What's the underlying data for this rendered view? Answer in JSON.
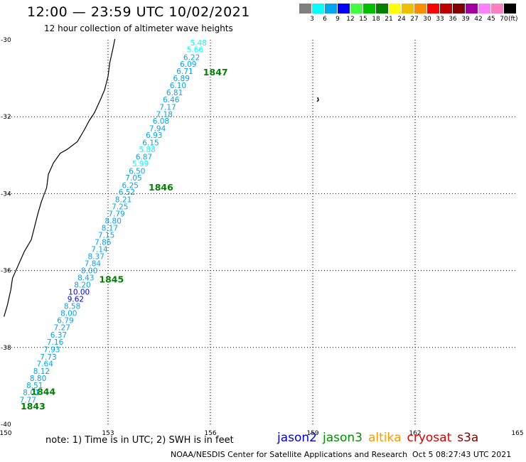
{
  "header": {
    "title": "12:00 — 23:59 UTC 10/02/2021",
    "subtitle": "12 hour collection of altimeter wave heights"
  },
  "color_scale": {
    "colors": [
      "#808080",
      "#00ffff",
      "#00a5f0",
      "#0000ff",
      "#40ff40",
      "#00c000",
      "#008000",
      "#ffff00",
      "#f0c000",
      "#ff8c00",
      "#ff0000",
      "#c00000",
      "#800000",
      "#a000a0",
      "#ff80ff",
      "#ff80c0",
      "#000000"
    ],
    "labels": [
      "3",
      "6",
      "9",
      "12",
      "15",
      "18",
      "21",
      "24",
      "27",
      "30",
      "33",
      "36",
      "39",
      "42",
      "45",
      "70"
    ],
    "unit": "(ft)"
  },
  "map": {
    "lon_labels": [
      "150",
      "153",
      "156",
      "159",
      "162",
      "165"
    ],
    "lat_labels": [
      "-30",
      "-32",
      "-34",
      "-36",
      "-38",
      "-40"
    ],
    "lon_range": [
      150,
      165
    ],
    "lat_range": [
      -30,
      -40
    ],
    "grid": "dotted"
  },
  "track": {
    "satellite": "jason3",
    "points": [
      {
        "lon": 155.65,
        "lat": -30.07,
        "swh": "5.48",
        "band": "#00ffff"
      },
      {
        "lon": 155.55,
        "lat": -30.25,
        "swh": "5.66",
        "band": "#00ffff"
      },
      {
        "lon": 155.45,
        "lat": -30.45,
        "swh": "6.22",
        "band": "#00a5f0"
      },
      {
        "lon": 155.35,
        "lat": -30.63,
        "swh": "6.09",
        "band": "#00a5f0"
      },
      {
        "lon": 155.25,
        "lat": -30.81,
        "swh": "6.71",
        "band": "#00a5f0"
      },
      {
        "lon": 155.15,
        "lat": -31.0,
        "swh": "6.89",
        "band": "#00a5f0"
      },
      {
        "lon": 155.05,
        "lat": -31.18,
        "swh": "6.10",
        "band": "#00a5f0"
      },
      {
        "lon": 154.95,
        "lat": -31.37,
        "swh": "6.81",
        "band": "#00a5f0"
      },
      {
        "lon": 154.85,
        "lat": -31.55,
        "swh": "6.46",
        "band": "#00a5f0"
      },
      {
        "lon": 154.75,
        "lat": -31.75,
        "swh": "7.17",
        "band": "#00a5f0"
      },
      {
        "lon": 154.65,
        "lat": -31.93,
        "swh": "7.18",
        "band": "#00a5f0"
      },
      {
        "lon": 154.55,
        "lat": -32.11,
        "swh": "6.08",
        "band": "#00a5f0"
      },
      {
        "lon": 154.45,
        "lat": -32.3,
        "swh": "7.94",
        "band": "#00a5f0"
      },
      {
        "lon": 154.35,
        "lat": -32.48,
        "swh": "6.93",
        "band": "#00a5f0"
      },
      {
        "lon": 154.25,
        "lat": -32.67,
        "swh": "6.15",
        "band": "#00a5f0"
      },
      {
        "lon": 154.15,
        "lat": -32.85,
        "swh": "5.88",
        "band": "#00ffff"
      },
      {
        "lon": 154.05,
        "lat": -33.04,
        "swh": "6.87",
        "band": "#00a5f0"
      },
      {
        "lon": 153.95,
        "lat": -33.22,
        "swh": "5.99",
        "band": "#00ffff"
      },
      {
        "lon": 153.85,
        "lat": -33.41,
        "swh": "6.50",
        "band": "#00a5f0"
      },
      {
        "lon": 153.75,
        "lat": -33.59,
        "swh": "7.05",
        "band": "#00a5f0"
      },
      {
        "lon": 153.65,
        "lat": -33.78,
        "swh": "6.25",
        "band": "#00a5f0"
      },
      {
        "lon": 153.55,
        "lat": -33.96,
        "swh": "6.52",
        "band": "#00a5f0"
      },
      {
        "lon": 153.45,
        "lat": -34.15,
        "swh": "8.21",
        "band": "#00a5f0"
      },
      {
        "lon": 153.35,
        "lat": -34.33,
        "swh": "7.25",
        "band": "#00a5f0"
      },
      {
        "lon": 153.25,
        "lat": -34.52,
        "swh": "7.79",
        "band": "#00a5f0"
      },
      {
        "lon": 153.15,
        "lat": -34.7,
        "swh": "8.80",
        "band": "#00a5f0"
      },
      {
        "lon": 153.05,
        "lat": -34.89,
        "swh": "8.17",
        "band": "#00a5f0"
      },
      {
        "lon": 152.95,
        "lat": -35.07,
        "swh": "7.15",
        "band": "#00a5f0"
      },
      {
        "lon": 152.85,
        "lat": -35.26,
        "swh": "7.86",
        "band": "#00a5f0"
      },
      {
        "lon": 152.75,
        "lat": -35.44,
        "swh": "7.14",
        "band": "#00a5f0"
      },
      {
        "lon": 152.65,
        "lat": -35.63,
        "swh": "8.37",
        "band": "#00a5f0"
      },
      {
        "lon": 152.55,
        "lat": -35.81,
        "swh": "7.84",
        "band": "#00a5f0"
      },
      {
        "lon": 152.45,
        "lat": -36.0,
        "swh": "8.00",
        "band": "#00a5f0"
      },
      {
        "lon": 152.35,
        "lat": -36.18,
        "swh": "8.43",
        "band": "#00a5f0"
      },
      {
        "lon": 152.25,
        "lat": -36.37,
        "swh": "8.20",
        "band": "#00a5f0"
      },
      {
        "lon": 152.15,
        "lat": -36.55,
        "swh": "10.00",
        "band": "#0000ff"
      },
      {
        "lon": 152.05,
        "lat": -36.74,
        "swh": "9.62",
        "band": "#0000ff"
      },
      {
        "lon": 151.95,
        "lat": -36.92,
        "swh": "8.58",
        "band": "#00a5f0"
      },
      {
        "lon": 151.85,
        "lat": -37.11,
        "swh": "8.00",
        "band": "#00a5f0"
      },
      {
        "lon": 151.75,
        "lat": -37.29,
        "swh": "6.79",
        "band": "#00a5f0"
      },
      {
        "lon": 151.65,
        "lat": -37.48,
        "swh": "7.27",
        "band": "#00a5f0"
      },
      {
        "lon": 151.55,
        "lat": -37.67,
        "swh": "6.37",
        "band": "#00a5f0"
      },
      {
        "lon": 151.45,
        "lat": -37.86,
        "swh": "7.16",
        "band": "#00a5f0"
      },
      {
        "lon": 151.35,
        "lat": -38.05,
        "swh": "7.93",
        "band": "#00a5f0"
      },
      {
        "lon": 151.25,
        "lat": -38.24,
        "swh": "7.73",
        "band": "#00a5f0"
      },
      {
        "lon": 151.15,
        "lat": -38.42,
        "swh": "7.64",
        "band": "#00a5f0"
      },
      {
        "lon": 151.05,
        "lat": -38.61,
        "swh": "8.12",
        "band": "#00a5f0"
      },
      {
        "lon": 150.95,
        "lat": -38.8,
        "swh": "8.80",
        "band": "#00a5f0"
      },
      {
        "lon": 150.85,
        "lat": -38.98,
        "swh": "8.51",
        "band": "#00a5f0"
      },
      {
        "lon": 150.75,
        "lat": -39.17,
        "swh": "8.01",
        "band": "#00a5f0"
      },
      {
        "lon": 150.65,
        "lat": -39.36,
        "swh": "7.77",
        "band": "#00a5f0"
      }
    ],
    "time_labels": [
      {
        "text": "1847",
        "lon": 156.15,
        "lat": -30.83
      },
      {
        "text": "1846",
        "lon": 154.55,
        "lat": -33.83
      },
      {
        "text": "1845",
        "lon": 153.1,
        "lat": -36.22
      },
      {
        "text": "1844",
        "lon": 151.1,
        "lat": -39.14
      },
      {
        "text": "1843",
        "lon": 150.8,
        "lat": -39.52
      }
    ],
    "time_color": "#008000"
  },
  "coastline": {
    "points": [
      [
        153.2,
        -29.98
      ],
      [
        153.15,
        -30.2
      ],
      [
        153.05,
        -30.6
      ],
      [
        153.0,
        -30.95
      ],
      [
        152.9,
        -31.3
      ],
      [
        152.78,
        -31.55
      ],
      [
        152.6,
        -31.9
      ],
      [
        152.45,
        -32.1
      ],
      [
        152.3,
        -32.35
      ],
      [
        152.1,
        -32.65
      ],
      [
        151.8,
        -32.85
      ],
      [
        151.6,
        -32.95
      ],
      [
        151.4,
        -33.2
      ],
      [
        151.25,
        -33.5
      ],
      [
        151.2,
        -33.85
      ],
      [
        151.05,
        -34.2
      ],
      [
        150.95,
        -34.5
      ],
      [
        150.85,
        -34.85
      ],
      [
        150.75,
        -35.2
      ],
      [
        150.55,
        -35.5
      ],
      [
        150.35,
        -35.9
      ],
      [
        150.2,
        -36.2
      ],
      [
        150.15,
        -36.5
      ],
      [
        150.05,
        -36.9
      ],
      [
        149.95,
        -37.2
      ]
    ]
  },
  "footer": {
    "note": "note: 1) Time is in UTC; 2) SWH is in feet",
    "satellites": [
      {
        "name": "jason2",
        "color": "#0000dd"
      },
      {
        "name": "jason3",
        "color": "#009000"
      },
      {
        "name": "altika",
        "color": "#ff9900"
      },
      {
        "name": "cryosat",
        "color": "#dd0000"
      },
      {
        "name": "s3a",
        "color": "#8b0000"
      }
    ],
    "credit": "NOAA/NESDIS Center for Satellite Applications and Research",
    "timestamp": "Oct  5 08:27:43 UTC 2021"
  }
}
